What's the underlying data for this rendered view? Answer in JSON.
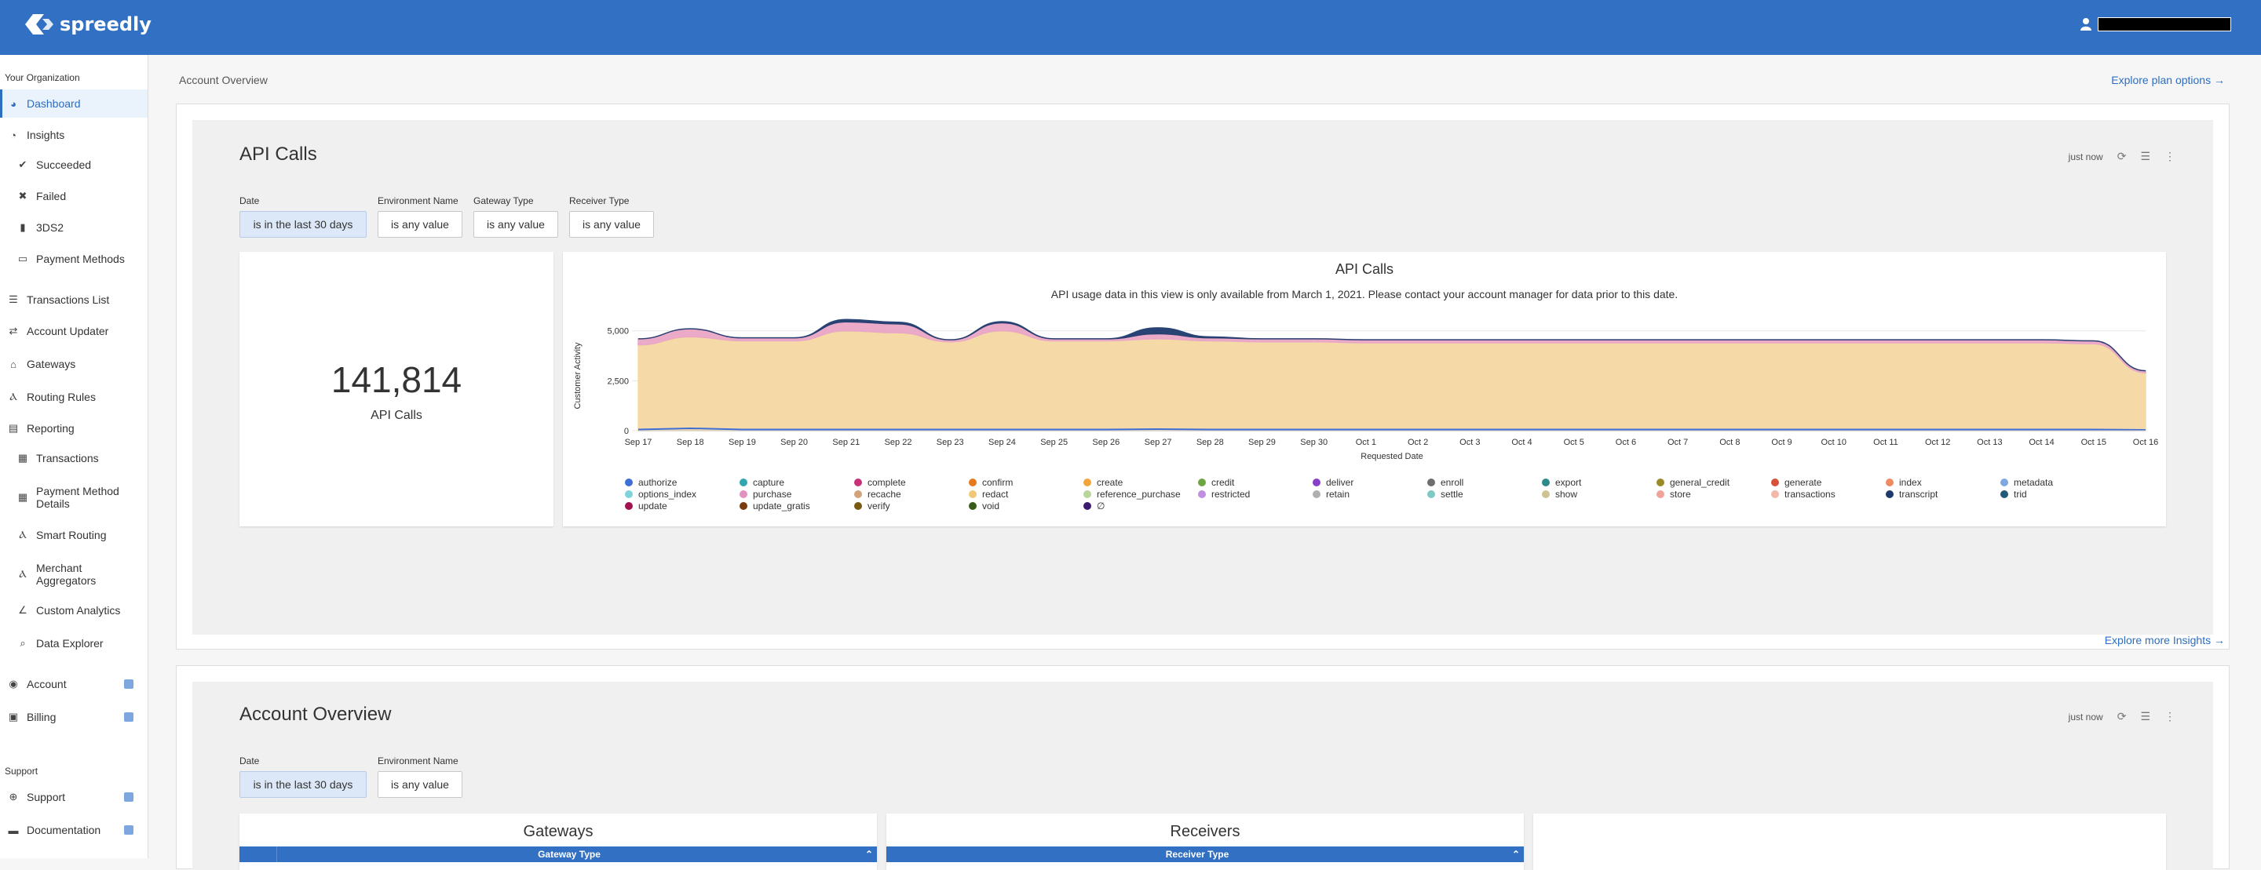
{
  "header": {
    "logo_text": "spreedly",
    "brand_color": "#3270c4",
    "user_icon": "user-icon"
  },
  "sidebar": {
    "org_title": "Your Organization",
    "items": [
      {
        "label": "Dashboard",
        "icon": "dashboard-icon",
        "active": true
      },
      {
        "label": "Insights",
        "icon": "pie-chart-icon"
      },
      {
        "label": "Succeeded",
        "icon": "check-icon"
      },
      {
        "label": "Failed",
        "icon": "x-icon"
      },
      {
        "label": "3DS2",
        "icon": "lock-icon"
      },
      {
        "label": "Payment Methods",
        "icon": "credit-card-icon"
      },
      {
        "label": "Transactions List",
        "icon": "list-icon"
      },
      {
        "label": "Account Updater",
        "icon": "refresh-icon"
      },
      {
        "label": "Gateways",
        "icon": "bank-icon"
      },
      {
        "label": "Routing Rules",
        "icon": "route-icon"
      },
      {
        "label": "Reporting",
        "icon": "report-icon"
      },
      {
        "label": "Transactions",
        "icon": "table-icon"
      },
      {
        "label": "Payment Method Details",
        "icon": "table-icon"
      },
      {
        "label": "Smart Routing",
        "icon": "route-icon"
      },
      {
        "label": "Merchant Aggregators",
        "icon": "route-icon"
      },
      {
        "label": "Custom Analytics",
        "icon": "line-chart-icon"
      },
      {
        "label": "Data Explorer",
        "icon": "search-icon"
      },
      {
        "label": "Account",
        "icon": "globe-icon"
      },
      {
        "label": "Billing",
        "icon": "billing-icon"
      }
    ],
    "support_title": "Support",
    "support_items": [
      {
        "label": "Support",
        "icon": "lifebuoy-icon"
      },
      {
        "label": "Documentation",
        "icon": "book-icon"
      }
    ]
  },
  "main": {
    "breadcrumb": "Account Overview",
    "explore_plan": "Explore plan options →",
    "explore_insights": "Explore more Insights →",
    "api_panel": {
      "title": "API Calls",
      "refreshed": "just now",
      "filters": [
        {
          "label": "Date",
          "value": "is in the last 30 days"
        },
        {
          "label": "Environment Name",
          "value": "is any value"
        },
        {
          "label": "Gateway Type",
          "value": "is any value"
        },
        {
          "label": "Receiver Type",
          "value": "is any value"
        }
      ],
      "total_value": "141,814",
      "total_label": "API Calls"
    },
    "overview_panel": {
      "title": "Account Overview",
      "refreshed": "just now",
      "filters": [
        {
          "label": "Date",
          "value": "is in the last 30 days"
        },
        {
          "label": "Environment Name",
          "value": "is any value"
        }
      ],
      "gateways_title": "Gateways",
      "gateways_col": "Gateway Type",
      "receivers_title": "Receivers",
      "receivers_col": "Receiver Type"
    }
  },
  "chart_data": {
    "type": "area",
    "title": "API Calls",
    "subtitle": "API usage data in this view is only available from March 1, 2021. Please contact your account manager for data prior to this date.",
    "xlabel": "Requested Date",
    "ylabel": "Customer Activity",
    "ylim": [
      0,
      5500
    ],
    "yticks": [
      0,
      2500,
      5000
    ],
    "ytick_labels": [
      "0",
      "2,500",
      "5,000"
    ],
    "x": [
      "Sep 17",
      "Sep 18",
      "Sep 19",
      "Sep 20",
      "Sep 21",
      "Sep 22",
      "Sep 23",
      "Sep 24",
      "Sep 25",
      "Sep 26",
      "Sep 27",
      "Sep 28",
      "Sep 29",
      "Sep 30",
      "Oct 1",
      "Oct 2",
      "Oct 3",
      "Oct 4",
      "Oct 5",
      "Oct 6",
      "Oct 7",
      "Oct 8",
      "Oct 9",
      "Oct 10",
      "Oct 11",
      "Oct 12",
      "Oct 13",
      "Oct 14",
      "Oct 15",
      "Oct 16"
    ],
    "series": [
      {
        "name": "store",
        "color": "#f5d9a3",
        "values": [
          4300,
          4700,
          4500,
          4500,
          5000,
          4900,
          4450,
          5000,
          4500,
          4500,
          4600,
          4500,
          4450,
          4450,
          4400,
          4400,
          4400,
          4400,
          4400,
          4400,
          4400,
          4400,
          4400,
          4400,
          4400,
          4400,
          4400,
          4400,
          4350,
          2900
        ]
      },
      {
        "name": "purchase",
        "color": "#e9a6c6",
        "values": [
          300,
          400,
          150,
          150,
          450,
          450,
          100,
          400,
          100,
          100,
          250,
          150,
          150,
          150,
          150,
          150,
          150,
          150,
          150,
          150,
          150,
          150,
          150,
          150,
          150,
          150,
          150,
          150,
          150,
          100
        ]
      },
      {
        "name": "authorize",
        "color": "#3e6ed6",
        "values": [
          60,
          120,
          60,
          60,
          60,
          60,
          60,
          60,
          60,
          60,
          80,
          60,
          60,
          60,
          60,
          60,
          60,
          60,
          60,
          60,
          60,
          60,
          60,
          60,
          60,
          60,
          60,
          60,
          60,
          40
        ]
      },
      {
        "name": "transcript",
        "color": "#1e3a6d",
        "values": [
          0,
          0,
          0,
          0,
          120,
          80,
          0,
          60,
          0,
          0,
          300,
          50,
          0,
          0,
          0,
          0,
          0,
          0,
          0,
          0,
          0,
          0,
          0,
          0,
          0,
          0,
          0,
          0,
          0,
          0
        ]
      }
    ],
    "legend": [
      {
        "name": "authorize",
        "color": "#3e6ed6"
      },
      {
        "name": "capture",
        "color": "#2fa6b0"
      },
      {
        "name": "complete",
        "color": "#c9317a"
      },
      {
        "name": "confirm",
        "color": "#e57a1f"
      },
      {
        "name": "create",
        "color": "#f2a53a"
      },
      {
        "name": "credit",
        "color": "#6ea544"
      },
      {
        "name": "deliver",
        "color": "#8b3fc9"
      },
      {
        "name": "enroll",
        "color": "#6e6e6e"
      },
      {
        "name": "export",
        "color": "#2f8b8b"
      },
      {
        "name": "general_credit",
        "color": "#9a8b2a"
      },
      {
        "name": "generate",
        "color": "#d9503a"
      },
      {
        "name": "index",
        "color": "#ef8a63"
      },
      {
        "name": "metadata",
        "color": "#7fa8e0"
      },
      {
        "name": "options_index",
        "color": "#7fd3db"
      },
      {
        "name": "purchase",
        "color": "#e391c1"
      },
      {
        "name": "recache",
        "color": "#d2a37a"
      },
      {
        "name": "redact",
        "color": "#f2c77a"
      },
      {
        "name": "reference_purchase",
        "color": "#b9d69a"
      },
      {
        "name": "restricted",
        "color": "#c18fe0"
      },
      {
        "name": "retain",
        "color": "#b0b0b0"
      },
      {
        "name": "settle",
        "color": "#7fc9c4"
      },
      {
        "name": "show",
        "color": "#cfc48f"
      },
      {
        "name": "store",
        "color": "#f0a39a"
      },
      {
        "name": "transactions",
        "color": "#f2b8a8"
      },
      {
        "name": "transcript",
        "color": "#1e3a6d"
      },
      {
        "name": "trid",
        "color": "#235a7a"
      },
      {
        "name": "update",
        "color": "#a1124f"
      },
      {
        "name": "update_gratis",
        "color": "#7a3b0f"
      },
      {
        "name": "verify",
        "color": "#7a5a12"
      },
      {
        "name": "void",
        "color": "#3a5a1a"
      },
      {
        "name": "∅",
        "color": "#3b1a6e"
      }
    ]
  }
}
